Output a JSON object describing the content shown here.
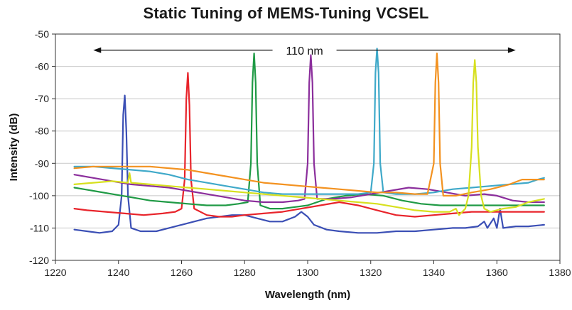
{
  "chart_data": {
    "type": "line",
    "title": "Static Tuning of MEMS-Tuning VCSEL",
    "xlabel": "Wavelength (nm)",
    "ylabel": "Intensity (dB)",
    "xlim": [
      1220,
      1380
    ],
    "ylim": [
      -120,
      -50
    ],
    "xticks": [
      1220,
      1240,
      1260,
      1280,
      1300,
      1320,
      1340,
      1360,
      1380
    ],
    "yticks": [
      -50,
      -60,
      -70,
      -80,
      -90,
      -100,
      -110,
      -120
    ],
    "grid": "horizontal",
    "legend": "none",
    "annotation": {
      "label": "110 nm",
      "x_start": 1232,
      "x_end": 1366,
      "y": -55
    },
    "series": [
      {
        "color": "#3b4fb5",
        "peak_x": 1242,
        "peak_y": -69,
        "points": [
          [
            1226,
            -110.5
          ],
          [
            1230,
            -111
          ],
          [
            1234,
            -111.5
          ],
          [
            1238,
            -111
          ],
          [
            1240,
            -109
          ],
          [
            1241,
            -100
          ],
          [
            1241.5,
            -75
          ],
          [
            1242,
            -69
          ],
          [
            1242.5,
            -80
          ],
          [
            1243,
            -100
          ],
          [
            1244,
            -110
          ],
          [
            1247,
            -111
          ],
          [
            1252,
            -111
          ],
          [
            1256,
            -110
          ],
          [
            1260,
            -109
          ],
          [
            1264,
            -108
          ],
          [
            1268,
            -107
          ],
          [
            1272,
            -106.5
          ],
          [
            1276,
            -106
          ],
          [
            1280,
            -106
          ],
          [
            1284,
            -107
          ],
          [
            1288,
            -108
          ],
          [
            1292,
            -108
          ],
          [
            1296,
            -106.5
          ],
          [
            1298,
            -105
          ],
          [
            1300,
            -106.5
          ],
          [
            1302,
            -109
          ],
          [
            1306,
            -110.5
          ],
          [
            1310,
            -111
          ],
          [
            1316,
            -111.5
          ],
          [
            1322,
            -111.5
          ],
          [
            1328,
            -111
          ],
          [
            1334,
            -111
          ],
          [
            1340,
            -110.5
          ],
          [
            1346,
            -110
          ],
          [
            1350,
            -110
          ],
          [
            1354,
            -109.5
          ],
          [
            1356,
            -108
          ],
          [
            1357,
            -110
          ],
          [
            1359,
            -107
          ],
          [
            1360,
            -110
          ],
          [
            1361,
            -104
          ],
          [
            1362,
            -110
          ],
          [
            1366,
            -109.5
          ],
          [
            1370,
            -109.5
          ],
          [
            1375,
            -109
          ]
        ]
      },
      {
        "color": "#e8242b",
        "peak_x": 1262,
        "peak_y": -62,
        "points": [
          [
            1226,
            -104
          ],
          [
            1230,
            -104.5
          ],
          [
            1236,
            -105
          ],
          [
            1242,
            -105.5
          ],
          [
            1248,
            -106
          ],
          [
            1254,
            -105.5
          ],
          [
            1258,
            -105
          ],
          [
            1260,
            -104
          ],
          [
            1261,
            -95
          ],
          [
            1261.5,
            -70
          ],
          [
            1262,
            -62
          ],
          [
            1262.5,
            -72
          ],
          [
            1263,
            -95
          ],
          [
            1264,
            -104
          ],
          [
            1268,
            -106
          ],
          [
            1272,
            -106.5
          ],
          [
            1276,
            -106.5
          ],
          [
            1280,
            -106
          ],
          [
            1286,
            -105.5
          ],
          [
            1292,
            -105
          ],
          [
            1298,
            -104
          ],
          [
            1304,
            -103
          ],
          [
            1310,
            -102
          ],
          [
            1316,
            -103
          ],
          [
            1322,
            -104.5
          ],
          [
            1328,
            -106
          ],
          [
            1334,
            -106.5
          ],
          [
            1340,
            -106
          ],
          [
            1346,
            -105.5
          ],
          [
            1352,
            -105
          ],
          [
            1358,
            -105
          ],
          [
            1364,
            -105
          ],
          [
            1370,
            -105
          ],
          [
            1375,
            -105
          ]
        ]
      },
      {
        "color": "#1f9a45",
        "peak_x": 1283,
        "peak_y": -56,
        "points": [
          [
            1226,
            -97.5
          ],
          [
            1232,
            -98.5
          ],
          [
            1238,
            -99.5
          ],
          [
            1244,
            -100.5
          ],
          [
            1250,
            -101.5
          ],
          [
            1256,
            -102
          ],
          [
            1262,
            -102.5
          ],
          [
            1268,
            -103
          ],
          [
            1274,
            -103
          ],
          [
            1278,
            -102.5
          ],
          [
            1281,
            -102
          ],
          [
            1282,
            -90
          ],
          [
            1282.5,
            -65
          ],
          [
            1283,
            -56
          ],
          [
            1283.5,
            -65
          ],
          [
            1284,
            -90
          ],
          [
            1285,
            -103
          ],
          [
            1288,
            -104
          ],
          [
            1292,
            -104
          ],
          [
            1296,
            -103.5
          ],
          [
            1300,
            -103
          ],
          [
            1306,
            -101
          ],
          [
            1312,
            -100
          ],
          [
            1318,
            -99.5
          ],
          [
            1324,
            -100
          ],
          [
            1330,
            -101.5
          ],
          [
            1336,
            -102.5
          ],
          [
            1342,
            -103
          ],
          [
            1348,
            -103
          ],
          [
            1354,
            -103
          ],
          [
            1360,
            -103
          ],
          [
            1366,
            -103
          ],
          [
            1370,
            -103
          ],
          [
            1375,
            -103
          ]
        ]
      },
      {
        "color": "#8b2e9c",
        "peak_x": 1301,
        "peak_y": -56.5,
        "points": [
          [
            1226,
            -93.5
          ],
          [
            1232,
            -94.5
          ],
          [
            1238,
            -95.5
          ],
          [
            1244,
            -96.5
          ],
          [
            1250,
            -97
          ],
          [
            1256,
            -97.5
          ],
          [
            1262,
            -98.5
          ],
          [
            1268,
            -99.5
          ],
          [
            1274,
            -100.5
          ],
          [
            1280,
            -101.5
          ],
          [
            1286,
            -102
          ],
          [
            1292,
            -102
          ],
          [
            1297,
            -101.5
          ],
          [
            1299,
            -101
          ],
          [
            1300,
            -90
          ],
          [
            1300.5,
            -65
          ],
          [
            1301,
            -56.5
          ],
          [
            1301.5,
            -65
          ],
          [
            1302,
            -90
          ],
          [
            1303,
            -101
          ],
          [
            1308,
            -101
          ],
          [
            1314,
            -100.5
          ],
          [
            1320,
            -99.5
          ],
          [
            1326,
            -98.5
          ],
          [
            1332,
            -97.5
          ],
          [
            1338,
            -98
          ],
          [
            1344,
            -99
          ],
          [
            1350,
            -100
          ],
          [
            1356,
            -99.5
          ],
          [
            1360,
            -100
          ],
          [
            1365,
            -101.5
          ],
          [
            1370,
            -102
          ],
          [
            1375,
            -102
          ]
        ]
      },
      {
        "color": "#3fa9c9",
        "peak_x": 1322,
        "peak_y": -54.5,
        "points": [
          [
            1226,
            -91
          ],
          [
            1232,
            -91
          ],
          [
            1238,
            -91.5
          ],
          [
            1244,
            -92
          ],
          [
            1250,
            -92.5
          ],
          [
            1256,
            -93.5
          ],
          [
            1262,
            -95
          ],
          [
            1268,
            -96
          ],
          [
            1274,
            -97
          ],
          [
            1280,
            -98
          ],
          [
            1286,
            -99
          ],
          [
            1292,
            -99.5
          ],
          [
            1298,
            -99.5
          ],
          [
            1304,
            -99.5
          ],
          [
            1310,
            -99.5
          ],
          [
            1316,
            -99.5
          ],
          [
            1320,
            -99
          ],
          [
            1321,
            -90
          ],
          [
            1321.5,
            -62
          ],
          [
            1322,
            -54.5
          ],
          [
            1322.5,
            -62
          ],
          [
            1323,
            -90
          ],
          [
            1324,
            -99
          ],
          [
            1328,
            -99.5
          ],
          [
            1334,
            -99.5
          ],
          [
            1340,
            -99
          ],
          [
            1346,
            -98
          ],
          [
            1352,
            -97.5
          ],
          [
            1358,
            -97
          ],
          [
            1364,
            -96.5
          ],
          [
            1370,
            -96
          ],
          [
            1373,
            -95
          ],
          [
            1375,
            -94.5
          ]
        ]
      },
      {
        "color": "#f39220",
        "peak_x": 1341,
        "peak_y": -56,
        "points": [
          [
            1226,
            -91.5
          ],
          [
            1232,
            -91
          ],
          [
            1238,
            -91
          ],
          [
            1244,
            -91
          ],
          [
            1250,
            -91
          ],
          [
            1256,
            -91.5
          ],
          [
            1262,
            -92
          ],
          [
            1268,
            -93
          ],
          [
            1274,
            -94
          ],
          [
            1280,
            -95
          ],
          [
            1286,
            -96
          ],
          [
            1292,
            -96.5
          ],
          [
            1298,
            -97
          ],
          [
            1304,
            -97.5
          ],
          [
            1310,
            -98
          ],
          [
            1316,
            -98.5
          ],
          [
            1322,
            -99
          ],
          [
            1328,
            -99
          ],
          [
            1334,
            -99.5
          ],
          [
            1338,
            -99.5
          ],
          [
            1340,
            -90
          ],
          [
            1340.5,
            -65
          ],
          [
            1341,
            -56
          ],
          [
            1341.5,
            -65
          ],
          [
            1342,
            -90
          ],
          [
            1343,
            -100
          ],
          [
            1347,
            -100
          ],
          [
            1352,
            -99
          ],
          [
            1358,
            -98
          ],
          [
            1364,
            -96.5
          ],
          [
            1368,
            -95
          ],
          [
            1372,
            -95
          ],
          [
            1375,
            -95
          ]
        ]
      },
      {
        "color": "#d7e01f",
        "peak_x": 1353,
        "peak_y": -58,
        "points": [
          [
            1226,
            -96.5
          ],
          [
            1232,
            -96
          ],
          [
            1238,
            -95.5
          ],
          [
            1243,
            -96
          ],
          [
            1243.5,
            -93
          ],
          [
            1244,
            -96
          ],
          [
            1250,
            -96.5
          ],
          [
            1256,
            -97
          ],
          [
            1262,
            -97.5
          ],
          [
            1268,
            -98
          ],
          [
            1274,
            -98.5
          ],
          [
            1280,
            -99
          ],
          [
            1286,
            -99.5
          ],
          [
            1292,
            -100
          ],
          [
            1298,
            -100.5
          ],
          [
            1304,
            -101
          ],
          [
            1310,
            -101.5
          ],
          [
            1316,
            -102
          ],
          [
            1322,
            -102.5
          ],
          [
            1328,
            -103.5
          ],
          [
            1334,
            -104.5
          ],
          [
            1340,
            -105
          ],
          [
            1345,
            -105
          ],
          [
            1347,
            -104
          ],
          [
            1348,
            -106
          ],
          [
            1350,
            -104
          ],
          [
            1351,
            -100
          ],
          [
            1352,
            -85
          ],
          [
            1352.5,
            -65
          ],
          [
            1353,
            -58
          ],
          [
            1353.5,
            -65
          ],
          [
            1354,
            -85
          ],
          [
            1355,
            -100
          ],
          [
            1356,
            -104
          ],
          [
            1358,
            -105
          ],
          [
            1362,
            -104
          ],
          [
            1366,
            -103.5
          ],
          [
            1370,
            -102
          ],
          [
            1375,
            -101
          ]
        ]
      }
    ]
  }
}
